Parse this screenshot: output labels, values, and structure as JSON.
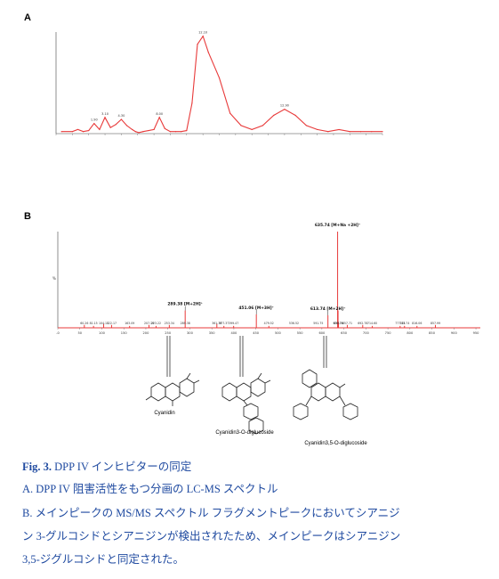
{
  "panel_a": {
    "label": "A"
  },
  "panel_b": {
    "label": "B"
  },
  "chart_data": [
    {
      "type": "line",
      "panel": "A",
      "title": "",
      "xlabel": "",
      "ylabel": "",
      "ylim": [
        0,
        100
      ],
      "x": [
        0.5,
        1.5,
        2.0,
        2.5,
        3.0,
        3.5,
        4.0,
        4.5,
        5.0,
        5.5,
        6.0,
        6.5,
        7.0,
        7.3,
        7.6,
        8.0,
        8.5,
        9.0,
        9.5,
        10.0,
        10.5,
        11.0,
        11.5,
        12.0,
        12.5,
        13.0,
        13.5,
        14.0,
        15.0,
        16.0,
        17.0,
        18.0,
        19.0,
        20.0,
        21.0,
        22.0,
        23.0,
        24.0,
        25.0,
        26.0,
        27.0,
        28.0,
        29.0,
        30.0
      ],
      "series": [
        {
          "values": [
            2,
            2,
            4,
            2,
            3,
            10,
            4,
            16,
            6,
            9,
            14,
            8,
            4,
            2,
            1,
            2,
            3,
            4,
            16,
            5,
            2,
            2,
            2,
            3,
            30,
            88,
            96,
            80,
            55,
            20,
            8,
            4,
            8,
            18,
            24,
            18,
            8,
            4,
            2,
            4,
            2,
            2,
            2,
            2
          ]
        }
      ],
      "peak_labels": [
        "1.90",
        "3.10",
        "4.30",
        "8.00",
        "12.10",
        "12.90",
        "17.20",
        "28.20"
      ]
    },
    {
      "type": "bar",
      "panel": "B",
      "title": "",
      "xlabel": "",
      "ylabel": "%",
      "x_ticks": [
        "-0",
        "50",
        "100",
        "150",
        "200",
        "250",
        "300",
        "350",
        "400",
        "450",
        "500",
        "550",
        "600",
        "650",
        "700",
        "750",
        "800",
        "850",
        "900",
        "950"
      ],
      "xlim": [
        0,
        960
      ],
      "ylim": [
        0,
        100
      ],
      "peaks": [
        {
          "mz": 60.26,
          "rel": 3
        },
        {
          "mz": 81.15,
          "rel": 2
        },
        {
          "mz": 104.13,
          "rel": 4
        },
        {
          "mz": 122.17,
          "rel": 3
        },
        {
          "mz": 163.09,
          "rel": 2
        },
        {
          "mz": 207.19,
          "rel": 3
        },
        {
          "mz": 223.22,
          "rel": 2
        },
        {
          "mz": 253.34,
          "rel": 3
        },
        {
          "mz": 289.38,
          "rel": 18
        },
        {
          "mz": 361.36,
          "rel": 4
        },
        {
          "mz": 377.37,
          "rel": 2
        },
        {
          "mz": 399.47,
          "rel": 2
        },
        {
          "mz": 451.06,
          "rel": 14
        },
        {
          "mz": 479.52,
          "rel": 2
        },
        {
          "mz": 613.74,
          "rel": 13
        },
        {
          "mz": 635.74,
          "rel": 100
        },
        {
          "mz": 636.74,
          "rel": 18
        },
        {
          "mz": 637.74,
          "rel": 6
        },
        {
          "mz": 657.71,
          "rel": 3
        },
        {
          "mz": 692.78,
          "rel": 3
        },
        {
          "mz": 714.6,
          "rel": 2
        },
        {
          "mz": 777.78,
          "rel": 2
        },
        {
          "mz": 787.74,
          "rel": 2
        },
        {
          "mz": 816.06,
          "rel": 2
        },
        {
          "mz": 857.99,
          "rel": 3
        }
      ],
      "annotations": [
        {
          "mz": 289.38,
          "text": "289.38 [M+2H]⁺"
        },
        {
          "mz": 451.06,
          "text": "451.06 [M+3H]⁺"
        },
        {
          "mz": 613.74,
          "text": "613.74 [M+2H]⁺"
        },
        {
          "mz": 635.74,
          "text": "635.74 [M+Na +2H]⁺"
        }
      ],
      "small_labels": [
        "60.26",
        "81.15",
        "104.13",
        "122.17",
        "163.09",
        "207.19",
        "223.22",
        "253.34",
        "289.38",
        "361.36",
        "377.37",
        "399.47",
        "479.52",
        "536.52",
        "591.75",
        "636.74",
        "637.74",
        "657.71",
        "692.78",
        "714.60",
        "777.78",
        "787.74",
        "816.06",
        "857.99"
      ]
    }
  ],
  "structures": [
    {
      "name": "Cyanidin"
    },
    {
      "name": "Cyanidin3-O-diglucoside"
    },
    {
      "name": "Cyanidin3,5-O-diglucoside"
    }
  ],
  "caption": {
    "fig_label": "Fig. 3.",
    "title": " DPP IV インヒビターの同定",
    "line_a": "A. DPP IV 阻害活性をもつ分画の LC-MS スペクトル",
    "line_b1": "B.  メインピークの MS/MS スペクトル  フラグメントピークにおいてシアニジ",
    "line_b2": "ン  3-グルコシドとシアニジンが検出されたため、メインピークはシアニジン",
    "line_b3": "3,5-ジグルコシドと同定された。"
  },
  "colors": {
    "trace": "#e83a3a",
    "caption": "#1f4aa0"
  }
}
